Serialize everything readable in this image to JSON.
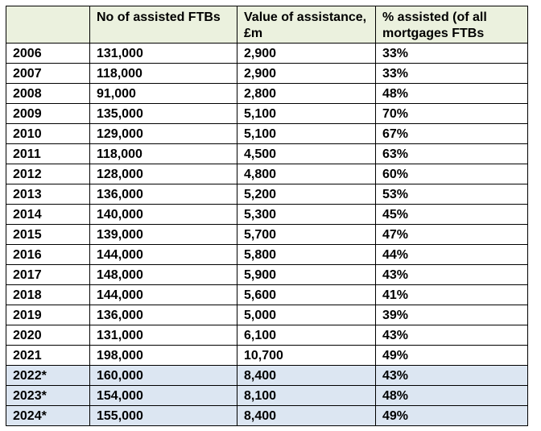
{
  "table": {
    "headers": {
      "year": "",
      "num_assisted": "No of assisted FTBs",
      "value": "Value of assistance, £m",
      "pct": "% assisted (of all mortgages FTBs"
    },
    "rows": [
      {
        "year": "2006",
        "num": "131,000",
        "value": "2,900",
        "pct": "33%",
        "projected": false
      },
      {
        "year": "2007",
        "num": "118,000",
        "value": "2,900",
        "pct": "33%",
        "projected": false
      },
      {
        "year": "2008",
        "num": "91,000",
        "value": "2,800",
        "pct": "48%",
        "projected": false
      },
      {
        "year": "2009",
        "num": "135,000",
        "value": "5,100",
        "pct": "70%",
        "projected": false
      },
      {
        "year": "2010",
        "num": "129,000",
        "value": "5,100",
        "pct": "67%",
        "projected": false
      },
      {
        "year": "2011",
        "num": "118,000",
        "value": "4,500",
        "pct": "63%",
        "projected": false
      },
      {
        "year": "2012",
        "num": "128,000",
        "value": "4,800",
        "pct": "60%",
        "projected": false
      },
      {
        "year": "2013",
        "num": "136,000",
        "value": "5,200",
        "pct": "53%",
        "projected": false
      },
      {
        "year": "2014",
        "num": "140,000",
        "value": "5,300",
        "pct": "45%",
        "projected": false
      },
      {
        "year": "2015",
        "num": "139,000",
        "value": "5,700",
        "pct": "47%",
        "projected": false
      },
      {
        "year": "2016",
        "num": "144,000",
        "value": "5,800",
        "pct": "44%",
        "projected": false
      },
      {
        "year": "2017",
        "num": "148,000",
        "value": "5,900",
        "pct": "43%",
        "projected": false
      },
      {
        "year": "2018",
        "num": "144,000",
        "value": "5,600",
        "pct": "41%",
        "projected": false
      },
      {
        "year": "2019",
        "num": "136,000",
        "value": "5,000",
        "pct": "39%",
        "projected": false
      },
      {
        "year": "2020",
        "num": "131,000",
        "value": "6,100",
        "pct": "43%",
        "projected": false
      },
      {
        "year": "2021",
        "num": "198,000",
        "value": "10,700",
        "pct": "49%",
        "projected": false
      },
      {
        "year": "2022*",
        "num": "160,000",
        "value": "8,400",
        "pct": "43%",
        "projected": true
      },
      {
        "year": "2023*",
        "num": "154,000",
        "value": "8,100",
        "pct": "48%",
        "projected": true
      },
      {
        "year": "2024*",
        "num": "155,000",
        "value": "8,400",
        "pct": "49%",
        "projected": true
      }
    ]
  },
  "colors": {
    "header_bg": "#ebf1de",
    "projected_row_bg": "#dce6f2",
    "border": "#000000"
  }
}
